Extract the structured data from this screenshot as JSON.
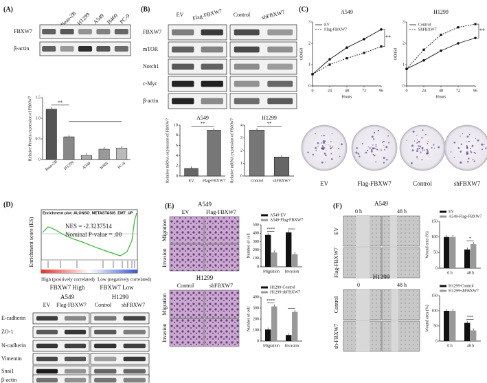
{
  "figure": {
    "panel_labels": [
      "(A)",
      "(B)",
      "(C)",
      "(D)",
      "(E)",
      "(F)"
    ],
    "a": {
      "lanes": [
        "Beas-2B",
        "H1299",
        "A549",
        "H460",
        "PC-9"
      ],
      "rows": [
        "FBXW7",
        "β-actin"
      ]
    },
    "b": {
      "lanes": [
        "EV",
        "Flag-FBXW7",
        "Control",
        "shFBXW7"
      ],
      "rows": [
        "FBXW7",
        "mTOR",
        "Notch1",
        "c-Myc",
        "β-actin"
      ]
    },
    "c": {
      "colonies": [
        "EV",
        "Flag-FBXW7",
        "Control",
        "shFBXW7"
      ]
    },
    "d": {
      "gsea_title": "Enrichment plot: ALONSO_METASTASIS_EMT_UP",
      "nes": "NES = -2.3237514",
      "p": "Nominal P-value = .00",
      "ylabel": "Enrichment score (ES)",
      "high": "High (positively correlated)",
      "low": "Low (negatively correlated)",
      "group_high": "FBXW7 High",
      "group_low": "FBXW7 Low",
      "cells": [
        "A549",
        "H1299"
      ],
      "lanes": [
        "EV",
        "Flag-FBXW7",
        "Control",
        "shFBXW7"
      ],
      "rows": [
        "E-cadherin",
        "ZO-1",
        "N-cadherin",
        "Vimentin",
        "Snai1",
        "β-actin"
      ]
    },
    "e": {
      "cells": [
        "A549",
        "H1299"
      ],
      "conditions": [
        [
          "EV",
          "Flag-FBXW7"
        ],
        [
          "Control",
          "shFBXW7"
        ]
      ],
      "assays": [
        "Migration",
        "Invasion"
      ]
    },
    "f": {
      "cells": [
        "A549",
        "H1299"
      ],
      "times": [
        [
          "0 h",
          "48 h"
        ],
        [
          "0",
          "48 h"
        ]
      ],
      "conditions": [
        [
          "EV",
          "Flag-FBXW7"
        ],
        [
          "Control",
          "sh-FBXW7"
        ]
      ]
    }
  },
  "chart_data": [
    {
      "type": "bar",
      "ylabel": "Relative Protein expression of FBXW7",
      "categories": [
        "Beas-2B",
        "H1299",
        "A549",
        "H460",
        "PC-9"
      ],
      "values": [
        1.22,
        0.55,
        0.1,
        0.25,
        0.28
      ],
      "colors": [
        "#555",
        "#888",
        "#aaa",
        "#999",
        "#bbb"
      ],
      "ylim": [
        0,
        1.5
      ],
      "yticks": [
        0,
        0.5,
        {
          "value": 1,
          "label": "1.0"
        },
        1.5
      ],
      "annotation": "**"
    },
    {
      "type": "bar",
      "title": "A549",
      "ylabel": "Relative mRNA expression of FBXW7",
      "categories": [
        "EV",
        "Flag-FBXW7"
      ],
      "values": [
        1.5,
        9
      ],
      "colors": [
        "#666",
        "#777"
      ],
      "ylim": [
        0,
        10
      ],
      "yticks": [
        0,
        2,
        4,
        6,
        8,
        10
      ],
      "annotation": "**"
    },
    {
      "type": "bar",
      "title": "H1299",
      "ylabel": "Relative mRNA expression of FBXW7",
      "categories": [
        "Control",
        "shFBXW7"
      ],
      "values": [
        3.6,
        1.5
      ],
      "colors": [
        "#777",
        "#666"
      ],
      "ylim": [
        0,
        4
      ],
      "yticks": [
        0,
        1,
        2,
        3,
        4
      ],
      "annotation": "**"
    },
    {
      "type": "line",
      "title": "A549",
      "xlabel": "Hours",
      "ylabel": "OD450",
      "x": [
        0,
        24,
        48,
        72,
        96
      ],
      "xlim": [
        0,
        96
      ],
      "xticks": [
        0,
        24,
        48,
        72,
        96
      ],
      "ylim": [
        0,
        3
      ],
      "yticks": [
        0,
        1,
        2,
        3
      ],
      "series": [
        {
          "name": "EV",
          "color": "#111",
          "values": [
            0.55,
            1.25,
            1.8,
            2.2,
            2.65
          ]
        },
        {
          "name": "Flag-FBXW7",
          "color": "#111",
          "line_style": "dashed",
          "values": [
            0.55,
            1.0,
            1.3,
            1.55,
            1.85
          ]
        }
      ],
      "annotation": "**"
    },
    {
      "type": "line",
      "title": "H1299",
      "xlabel": "Hours",
      "ylabel": "OD450",
      "x": [
        0,
        24,
        48,
        72,
        96
      ],
      "xlim": [
        0,
        96
      ],
      "xticks": [
        0,
        24,
        48,
        72,
        96
      ],
      "ylim": [
        0,
        3
      ],
      "yticks": [
        0,
        1,
        2,
        3
      ],
      "series": [
        {
          "name": "Control",
          "color": "#111",
          "values": [
            0.8,
            1.2,
            1.65,
            2.0,
            2.25
          ]
        },
        {
          "name": "ShFBXW7",
          "color": "#111",
          "line_style": "dashed",
          "values": [
            0.8,
            1.7,
            2.4,
            2.75,
            2.9
          ]
        }
      ],
      "annotation": "**"
    },
    {
      "type": "bar",
      "ylabel": "Number of cell",
      "categories": [
        "Migration",
        "Invasion"
      ],
      "series": [
        {
          "name": "A549-EV",
          "color": "#111",
          "values": [
            380,
            410
          ]
        },
        {
          "name": "A549-Flag-FBXW7",
          "color": "#999",
          "values": [
            170,
            150
          ]
        }
      ],
      "ylim": [
        0,
        500
      ],
      "yticks": [
        0,
        100,
        200,
        300,
        400,
        500
      ],
      "annotation": "****"
    },
    {
      "type": "bar",
      "ylabel": "Number of cell",
      "categories": [
        "Migration",
        "Invasion"
      ],
      "series": [
        {
          "name": "H1299-Control",
          "color": "#111",
          "values": [
            105,
            55
          ]
        },
        {
          "name": "H1299-shFBXW7",
          "color": "#999",
          "values": [
            315,
            265
          ]
        }
      ],
      "ylim": [
        0,
        400
      ],
      "yticks": [
        0,
        100,
        200,
        300,
        400
      ],
      "annotation": "****"
    },
    {
      "type": "bar",
      "ylabel": "Wound area (%)",
      "categories": [
        "0 h",
        "48 h"
      ],
      "series": [
        {
          "name": "EV",
          "color": "#111",
          "values": [
            100,
            60
          ]
        },
        {
          "name": "A549-Flag-FBXW7",
          "color": "#999",
          "values": [
            100,
            77
          ]
        }
      ],
      "ylim": [
        0,
        150
      ],
      "yticks": [
        0,
        50,
        100,
        150
      ],
      "annotation": "*"
    },
    {
      "type": "bar",
      "ylabel": "Wound area (%)",
      "categories": [
        "0 h",
        "48 h"
      ],
      "series": [
        {
          "name": "H1299-Control",
          "color": "#111",
          "values": [
            100,
            60
          ]
        },
        {
          "name": "H1299-shFBXW7",
          "color": "#999",
          "values": [
            100,
            35
          ]
        }
      ],
      "ylim": [
        0,
        150
      ],
      "yticks": [
        0,
        50,
        100,
        150
      ],
      "annotation": "***"
    }
  ]
}
